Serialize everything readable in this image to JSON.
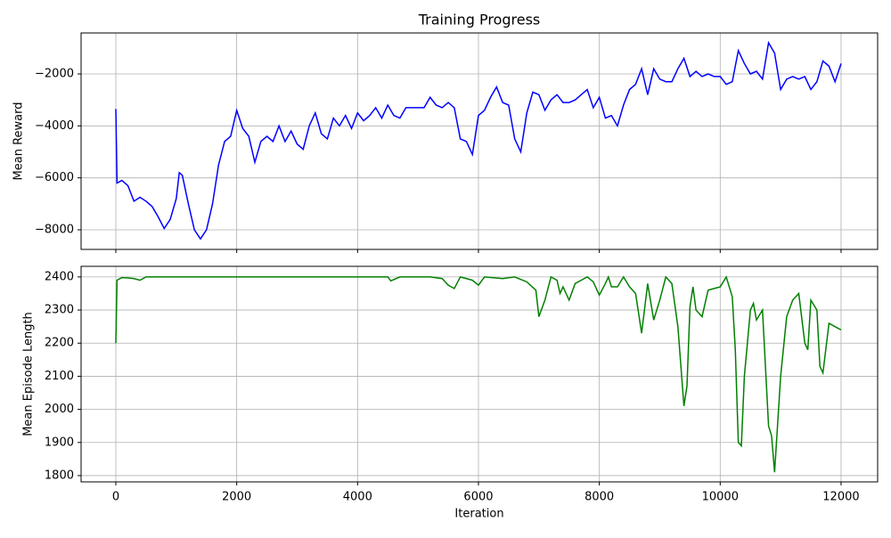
{
  "chart_data": [
    {
      "type": "line",
      "title": "Training Progress",
      "ylabel": "Mean Reward",
      "color": "#0000ff",
      "grid": true,
      "xlim": [
        -575,
        12605
      ],
      "ylim": [
        -8754,
        -423
      ],
      "xticks": [
        0,
        2000,
        4000,
        6000,
        8000,
        10000,
        12000
      ],
      "yticks": [
        {
          "value": -8000,
          "label": "−8000"
        },
        {
          "value": -6000,
          "label": "−6000"
        },
        {
          "value": -4000,
          "label": "−4000"
        },
        {
          "value": -2000,
          "label": "−2000"
        }
      ],
      "x": [
        0,
        20,
        100,
        200,
        300,
        400,
        500,
        600,
        700,
        800,
        900,
        1000,
        1050,
        1100,
        1200,
        1300,
        1400,
        1500,
        1600,
        1700,
        1800,
        1900,
        2000,
        2100,
        2200,
        2300,
        2400,
        2500,
        2600,
        2700,
        2800,
        2900,
        3000,
        3100,
        3200,
        3300,
        3400,
        3500,
        3600,
        3700,
        3800,
        3900,
        4000,
        4100,
        4200,
        4300,
        4400,
        4500,
        4600,
        4700,
        4800,
        4900,
        5000,
        5100,
        5200,
        5300,
        5400,
        5500,
        5600,
        5700,
        5800,
        5900,
        6000,
        6100,
        6200,
        6300,
        6400,
        6500,
        6600,
        6700,
        6800,
        6900,
        7000,
        7100,
        7200,
        7300,
        7400,
        7500,
        7600,
        7700,
        7800,
        7900,
        8000,
        8100,
        8200,
        8300,
        8400,
        8500,
        8600,
        8700,
        8800,
        8900,
        9000,
        9100,
        9200,
        9300,
        9400,
        9500,
        9600,
        9700,
        9800,
        9900,
        10000,
        10100,
        10200,
        10300,
        10400,
        10500,
        10600,
        10700,
        10800,
        10900,
        11000,
        11100,
        11200,
        11300,
        11400,
        11500,
        11600,
        11700,
        11800,
        11900,
        12000
      ],
      "values": [
        -3350,
        -6200,
        -6100,
        -6300,
        -6900,
        -6750,
        -6900,
        -7100,
        -7500,
        -7950,
        -7600,
        -6800,
        -5800,
        -5900,
        -7000,
        -8000,
        -8350,
        -8000,
        -7000,
        -5500,
        -4600,
        -4400,
        -3400,
        -4100,
        -4400,
        -5400,
        -4600,
        -4400,
        -4600,
        -4000,
        -4600,
        -4200,
        -4700,
        -4900,
        -4000,
        -3500,
        -4300,
        -4500,
        -3700,
        -4000,
        -3600,
        -4100,
        -3500,
        -3800,
        -3600,
        -3300,
        -3700,
        -3200,
        -3600,
        -3700,
        -3300,
        -3300,
        -3300,
        -3300,
        -2900,
        -3200,
        -3300,
        -3100,
        -3300,
        -4500,
        -4600,
        -5100,
        -3600,
        -3400,
        -2900,
        -2500,
        -3100,
        -3200,
        -4500,
        -5000,
        -3500,
        -2700,
        -2800,
        -3400,
        -3000,
        -2800,
        -3100,
        -3100,
        -3000,
        -2800,
        -2600,
        -3300,
        -2900,
        -3700,
        -3600,
        -4000,
        -3200,
        -2600,
        -2400,
        -1800,
        -2800,
        -1800,
        -2200,
        -2300,
        -2300,
        -1800,
        -1400,
        -2100,
        -1900,
        -2100,
        -2000,
        -2100,
        -2100,
        -2400,
        -2300,
        -1100,
        -1600,
        -2000,
        -1900,
        -2200,
        -800,
        -1200,
        -2600,
        -2200,
        -2100,
        -2200,
        -2100,
        -2600,
        -2300,
        -1500,
        -1700,
        -2300,
        -1600
      ]
    },
    {
      "type": "line",
      "xlabel": "Iteration",
      "ylabel": "Mean Episode Length",
      "color": "#008000",
      "grid": true,
      "xlim": [
        -575,
        12605
      ],
      "ylim": [
        1781,
        2432
      ],
      "xticks": [
        0,
        2000,
        4000,
        6000,
        8000,
        10000,
        12000
      ],
      "yticks": [
        1800,
        1900,
        2000,
        2100,
        2200,
        2300,
        2400
      ],
      "x": [
        0,
        20,
        100,
        200,
        300,
        400,
        500,
        4500,
        4550,
        4700,
        5200,
        5400,
        5500,
        5600,
        5700,
        5900,
        6000,
        6100,
        6400,
        6600,
        6800,
        6950,
        7000,
        7100,
        7200,
        7300,
        7350,
        7400,
        7500,
        7600,
        7700,
        7800,
        7900,
        8000,
        8100,
        8150,
        8200,
        8300,
        8400,
        8500,
        8600,
        8700,
        8800,
        8900,
        9000,
        9100,
        9200,
        9300,
        9400,
        9450,
        9500,
        9550,
        9600,
        9700,
        9800,
        9900,
        10000,
        10100,
        10200,
        10250,
        10300,
        10350,
        10400,
        10500,
        10550,
        10600,
        10700,
        10800,
        10850,
        10900,
        11000,
        11100,
        11200,
        11300,
        11400,
        11450,
        11500,
        11600,
        11650,
        11700,
        11800,
        11900,
        12000
      ],
      "values": [
        2200,
        2390,
        2398,
        2397,
        2395,
        2390,
        2400,
        2400,
        2388,
        2400,
        2400,
        2395,
        2375,
        2365,
        2400,
        2390,
        2375,
        2400,
        2395,
        2400,
        2385,
        2360,
        2280,
        2330,
        2400,
        2390,
        2350,
        2370,
        2330,
        2380,
        2390,
        2400,
        2385,
        2345,
        2380,
        2400,
        2370,
        2370,
        2400,
        2370,
        2350,
        2230,
        2380,
        2270,
        2330,
        2400,
        2380,
        2250,
        2010,
        2070,
        2310,
        2370,
        2300,
        2280,
        2360,
        2365,
        2370,
        2400,
        2340,
        2180,
        1900,
        1890,
        2100,
        2300,
        2320,
        2270,
        2300,
        1950,
        1920,
        1810,
        2100,
        2280,
        2330,
        2350,
        2200,
        2180,
        2330,
        2300,
        2130,
        2110,
        2260,
        2250,
        2240
      ]
    }
  ]
}
